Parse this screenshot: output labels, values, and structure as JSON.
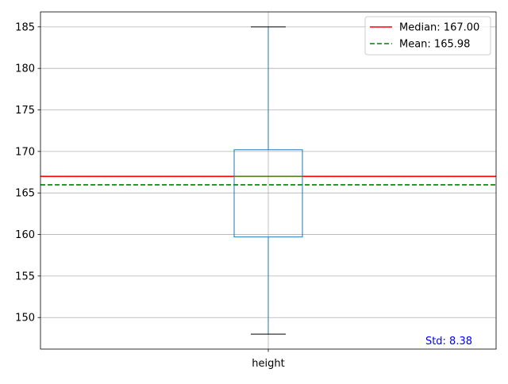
{
  "chart_data": {
    "type": "box",
    "categories": [
      "height"
    ],
    "box": {
      "name": "height",
      "min": 148,
      "q1": 159.7,
      "median": 167.0,
      "q3": 170.2,
      "max": 185
    },
    "ylim": [
      146.2,
      186.8
    ],
    "yticks": [
      150,
      155,
      160,
      165,
      170,
      175,
      180,
      185
    ],
    "grid": true,
    "reference_lines": [
      {
        "name": "Median: 167.00",
        "value": 167.0,
        "color": "#ff0000",
        "style": "solid"
      },
      {
        "name": "Mean: 165.98",
        "value": 165.98,
        "color": "#008000",
        "style": "dashed"
      }
    ],
    "legend": "top-right",
    "annotation": {
      "text": "Std: 8.38",
      "color": "#0000ff"
    },
    "colors": {
      "box": "#1f77b4",
      "cap": "#000000",
      "grid": "#b0b0b0",
      "median_in_box": "#2ca02c"
    }
  }
}
